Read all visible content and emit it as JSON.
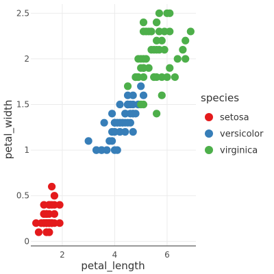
{
  "chart_data": {
    "type": "scatter",
    "xlabel": "petal_length",
    "ylabel": "petal_width",
    "xlim": [
      0.8,
      7.1
    ],
    "ylim": [
      -0.05,
      2.6
    ],
    "x_ticks": [
      2,
      4,
      6
    ],
    "y_ticks": [
      0,
      0.5,
      1,
      1.5,
      2,
      2.5
    ],
    "x_tick_labels": [
      "2",
      "4",
      "6"
    ],
    "y_tick_labels": [
      "0",
      "0.5",
      "1",
      "1.5",
      "2",
      "2.5"
    ],
    "grid": true,
    "legend": {
      "title": "species",
      "position": "right"
    },
    "series": [
      {
        "name": "setosa",
        "color": "#e41a1c",
        "points": [
          [
            1.4,
            0.2
          ],
          [
            1.4,
            0.2
          ],
          [
            1.3,
            0.2
          ],
          [
            1.5,
            0.2
          ],
          [
            1.4,
            0.2
          ],
          [
            1.7,
            0.4
          ],
          [
            1.4,
            0.3
          ],
          [
            1.5,
            0.2
          ],
          [
            1.4,
            0.2
          ],
          [
            1.5,
            0.1
          ],
          [
            1.5,
            0.2
          ],
          [
            1.6,
            0.2
          ],
          [
            1.4,
            0.1
          ],
          [
            1.1,
            0.1
          ],
          [
            1.2,
            0.2
          ],
          [
            1.5,
            0.4
          ],
          [
            1.3,
            0.4
          ],
          [
            1.4,
            0.3
          ],
          [
            1.7,
            0.3
          ],
          [
            1.5,
            0.3
          ],
          [
            1.7,
            0.2
          ],
          [
            1.5,
            0.4
          ],
          [
            1.0,
            0.2
          ],
          [
            1.7,
            0.5
          ],
          [
            1.9,
            0.2
          ],
          [
            1.6,
            0.2
          ],
          [
            1.6,
            0.4
          ],
          [
            1.5,
            0.2
          ],
          [
            1.4,
            0.2
          ],
          [
            1.6,
            0.2
          ],
          [
            1.6,
            0.2
          ],
          [
            1.5,
            0.4
          ],
          [
            1.5,
            0.1
          ],
          [
            1.4,
            0.2
          ],
          [
            1.5,
            0.2
          ],
          [
            1.2,
            0.2
          ],
          [
            1.3,
            0.2
          ],
          [
            1.4,
            0.1
          ],
          [
            1.3,
            0.2
          ],
          [
            1.5,
            0.2
          ],
          [
            1.3,
            0.3
          ],
          [
            1.3,
            0.3
          ],
          [
            1.3,
            0.2
          ],
          [
            1.6,
            0.6
          ],
          [
            1.9,
            0.4
          ],
          [
            1.4,
            0.3
          ],
          [
            1.6,
            0.2
          ],
          [
            1.4,
            0.2
          ],
          [
            1.5,
            0.2
          ],
          [
            1.4,
            0.2
          ]
        ]
      },
      {
        "name": "versicolor",
        "color": "#377eb8",
        "points": [
          [
            4.7,
            1.4
          ],
          [
            4.5,
            1.5
          ],
          [
            4.9,
            1.5
          ],
          [
            4.0,
            1.3
          ],
          [
            4.6,
            1.5
          ],
          [
            4.5,
            1.3
          ],
          [
            4.7,
            1.6
          ],
          [
            3.3,
            1.0
          ],
          [
            4.6,
            1.3
          ],
          [
            3.9,
            1.4
          ],
          [
            3.5,
            1.0
          ],
          [
            4.2,
            1.5
          ],
          [
            4.0,
            1.0
          ],
          [
            4.7,
            1.4
          ],
          [
            3.6,
            1.3
          ],
          [
            4.4,
            1.4
          ],
          [
            4.5,
            1.5
          ],
          [
            4.1,
            1.0
          ],
          [
            4.5,
            1.5
          ],
          [
            3.9,
            1.1
          ],
          [
            4.8,
            1.8
          ],
          [
            4.0,
            1.3
          ],
          [
            4.9,
            1.5
          ],
          [
            4.7,
            1.2
          ],
          [
            4.3,
            1.3
          ],
          [
            4.4,
            1.4
          ],
          [
            4.8,
            1.4
          ],
          [
            5.0,
            1.7
          ],
          [
            4.5,
            1.5
          ],
          [
            3.5,
            1.0
          ],
          [
            3.8,
            1.1
          ],
          [
            3.7,
            1.0
          ],
          [
            3.9,
            1.2
          ],
          [
            5.1,
            1.6
          ],
          [
            4.5,
            1.5
          ],
          [
            4.5,
            1.6
          ],
          [
            4.7,
            1.5
          ],
          [
            4.4,
            1.3
          ],
          [
            4.1,
            1.3
          ],
          [
            4.0,
            1.3
          ],
          [
            4.4,
            1.2
          ],
          [
            4.6,
            1.4
          ],
          [
            4.0,
            1.2
          ],
          [
            3.3,
            1.0
          ],
          [
            4.2,
            1.3
          ],
          [
            4.2,
            1.2
          ],
          [
            4.2,
            1.3
          ],
          [
            4.3,
            1.3
          ],
          [
            3.0,
            1.1
          ],
          [
            4.1,
            1.3
          ]
        ]
      },
      {
        "name": "virginica",
        "color": "#4daf4a",
        "points": [
          [
            6.0,
            2.5
          ],
          [
            5.1,
            1.9
          ],
          [
            5.9,
            2.1
          ],
          [
            5.6,
            1.8
          ],
          [
            5.8,
            2.2
          ],
          [
            6.6,
            2.1
          ],
          [
            4.5,
            1.7
          ],
          [
            6.3,
            1.8
          ],
          [
            5.8,
            1.8
          ],
          [
            6.1,
            2.5
          ],
          [
            5.1,
            2.0
          ],
          [
            5.3,
            1.9
          ],
          [
            5.5,
            2.1
          ],
          [
            5.0,
            2.0
          ],
          [
            5.1,
            2.4
          ],
          [
            5.3,
            2.3
          ],
          [
            5.5,
            1.8
          ],
          [
            6.7,
            2.2
          ],
          [
            6.9,
            2.3
          ],
          [
            5.0,
            1.5
          ],
          [
            5.7,
            2.3
          ],
          [
            4.9,
            2.0
          ],
          [
            6.7,
            2.0
          ],
          [
            4.9,
            1.8
          ],
          [
            5.7,
            2.1
          ],
          [
            6.0,
            1.8
          ],
          [
            4.8,
            1.8
          ],
          [
            4.9,
            1.8
          ],
          [
            5.6,
            2.1
          ],
          [
            5.8,
            1.6
          ],
          [
            6.1,
            1.9
          ],
          [
            6.4,
            2.0
          ],
          [
            5.6,
            2.2
          ],
          [
            5.1,
            1.5
          ],
          [
            5.6,
            1.4
          ],
          [
            6.1,
            2.3
          ],
          [
            5.6,
            2.4
          ],
          [
            5.5,
            1.8
          ],
          [
            4.8,
            1.8
          ],
          [
            5.4,
            2.1
          ],
          [
            5.6,
            2.4
          ],
          [
            5.1,
            2.3
          ],
          [
            5.1,
            1.9
          ],
          [
            5.9,
            2.3
          ],
          [
            5.7,
            2.5
          ],
          [
            5.2,
            2.3
          ],
          [
            5.0,
            1.9
          ],
          [
            5.2,
            2.0
          ],
          [
            5.4,
            2.3
          ],
          [
            5.1,
            1.8
          ]
        ]
      }
    ]
  }
}
